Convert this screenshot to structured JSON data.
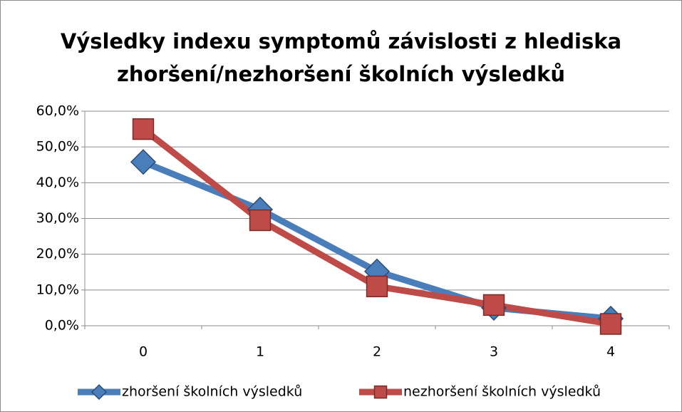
{
  "chart_data": {
    "type": "line",
    "title": "Výsledky indexu symptomů závislosti z hlediska zhoršení/nezhoršení školních výsledků",
    "categories": [
      "0",
      "1",
      "2",
      "3",
      "4"
    ],
    "series": [
      {
        "name": "zhoršení školních výsledků",
        "color": "#4a7ebb",
        "marker": "diamond",
        "values": [
          45.8,
          32.5,
          15.2,
          5.0,
          2.0
        ]
      },
      {
        "name": "nezhoršení školních výsledků",
        "color": "#be4b48",
        "marker": "square",
        "values": [
          55.0,
          29.5,
          11.0,
          5.8,
          0.5
        ]
      }
    ],
    "ylim": [
      0,
      60
    ],
    "yticks": [
      {
        "value": 0,
        "label": "0,0%"
      },
      {
        "value": 10,
        "label": "10,0%"
      },
      {
        "value": 20,
        "label": "20,0%"
      },
      {
        "value": 30,
        "label": "30,0%"
      },
      {
        "value": 40,
        "label": "40,0%"
      },
      {
        "value": 50,
        "label": "50,0%"
      },
      {
        "value": 60,
        "label": "60,0%"
      }
    ],
    "grid": true,
    "legend": "bottom"
  }
}
